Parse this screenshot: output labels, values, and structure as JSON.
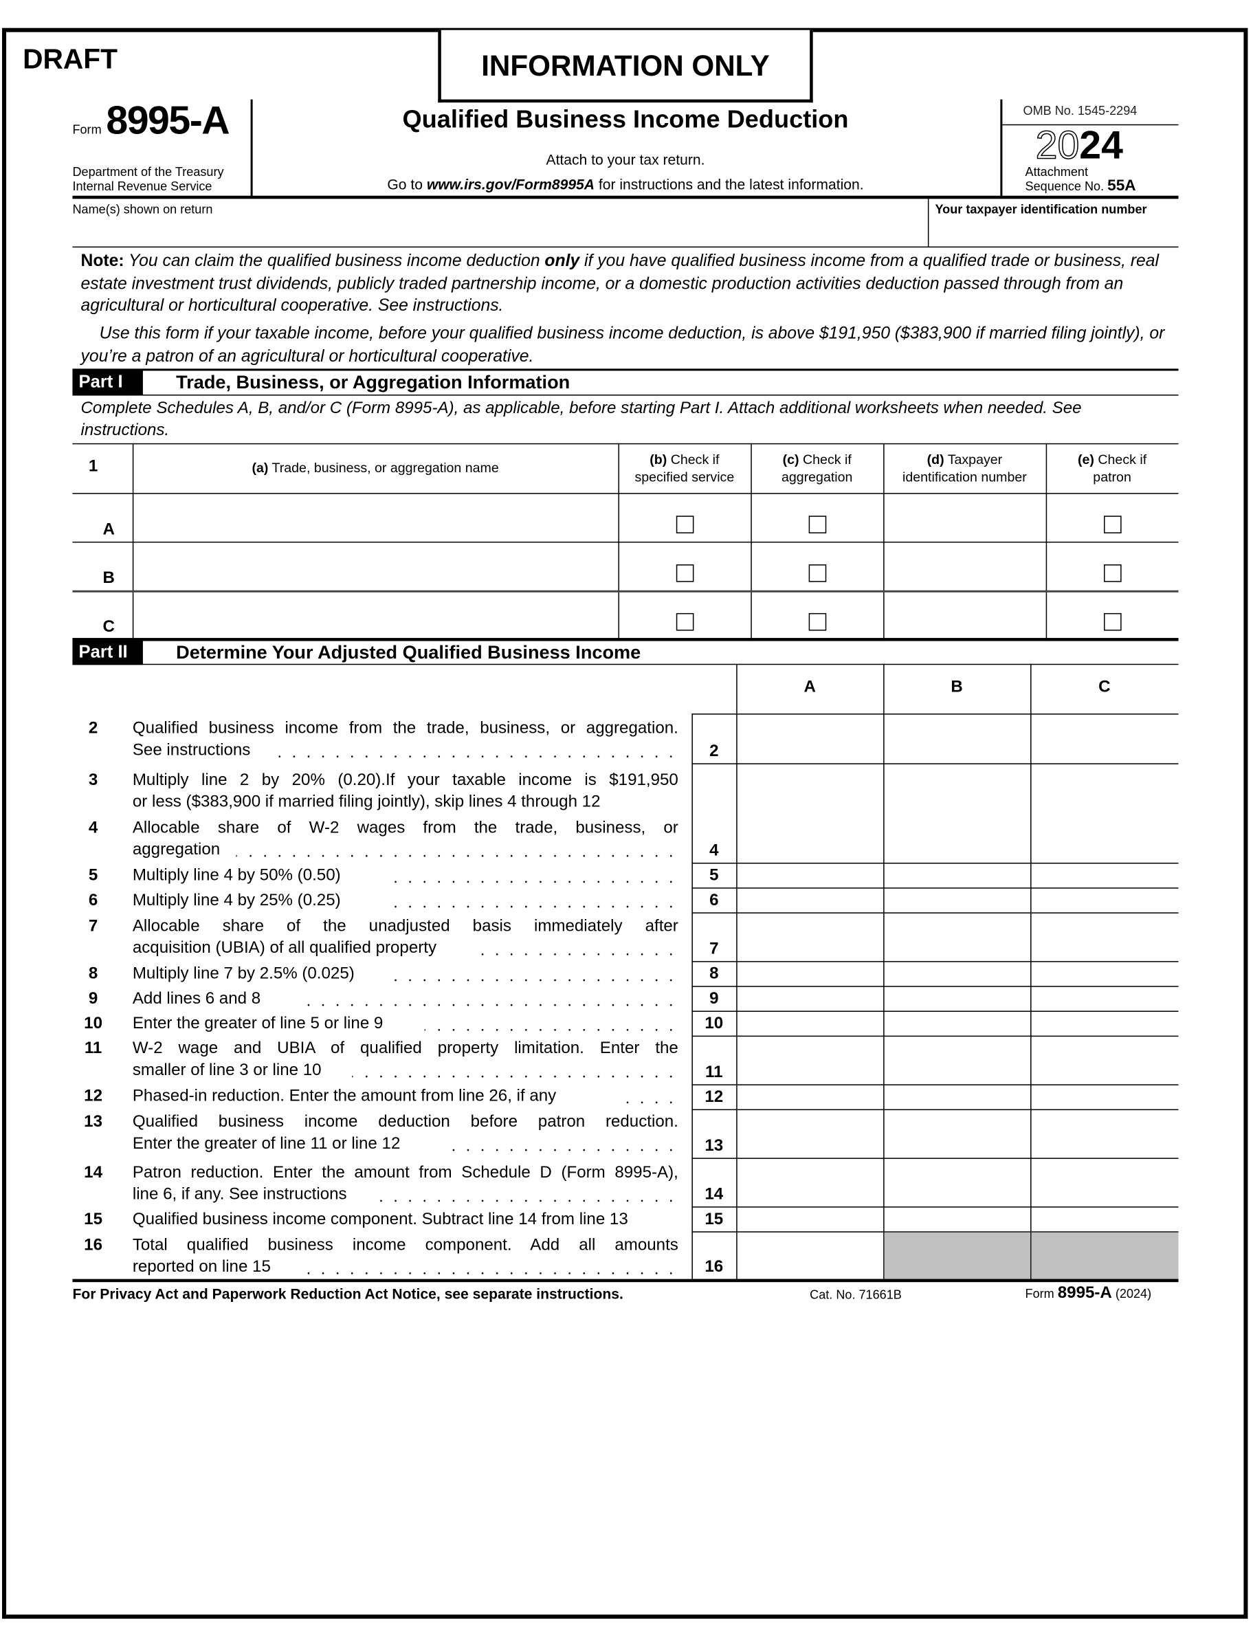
{
  "watermark": {
    "draft": "DRAFT",
    "information_only": "INFORMATION ONLY"
  },
  "header": {
    "form_word": "Form",
    "form_number": "8995-A",
    "dept_line1": "Department of the Treasury",
    "dept_line2": "Internal Revenue Service",
    "title": "Qualified Business Income Deduction",
    "attach": "Attach to your tax return.",
    "goto_prefix": "Go to ",
    "goto_url": "www.irs.gov/Form8995A",
    "goto_suffix": " for instructions and the latest information.",
    "omb": "OMB No. 1545-2294",
    "year_outline": "20",
    "year_bold": "24",
    "attachment": "Attachment",
    "sequence_label": "Sequence No.",
    "sequence_no": "55A"
  },
  "identity": {
    "name_label": "Name(s) shown on return",
    "name_value": "",
    "tin_label": "Your taxpayer identification number",
    "tin_value": ""
  },
  "note": {
    "label": "Note:",
    "text1": " You can claim the qualified business income deduction ",
    "only": "only",
    "text2": " if you have qualified business income from a qualified trade or business, real estate investment trust dividends, publicly traded partnership income, or a domestic production activities deduction passed through from an agricultural or horticultural cooperative. See instructions.",
    "use_text": "Use this form if your taxable income, before your qualified business income deduction, is above $191,950 ($383,900 if married filing jointly), or you’re a patron of an agricultural or horticultural cooperative."
  },
  "part1": {
    "label": "Part I",
    "title": "Trade, Business, or Aggregation Information",
    "instructions": "Complete Schedules A, B, and/or C (Form 8995-A), as applicable, before starting Part I. Attach additional worksheets when needed. See instructions.",
    "line_number": "1",
    "columns": [
      {
        "letter": "(a)",
        "text": " Trade, business, or aggregation name"
      },
      {
        "letter": "(b)",
        "text": " Check if",
        "text2": "specified service"
      },
      {
        "letter": "(c)",
        "text": " Check if",
        "text2": "aggregation"
      },
      {
        "letter": "(d)",
        "text": " Taxpayer",
        "text2": "identification number"
      },
      {
        "letter": "(e)",
        "text": " Check if",
        "text2": "patron"
      }
    ],
    "rows": [
      {
        "label": "A",
        "name": "",
        "specified_service": false,
        "aggregation": false,
        "tin": "",
        "patron": false
      },
      {
        "label": "B",
        "name": "",
        "specified_service": false,
        "aggregation": false,
        "tin": "",
        "patron": false
      },
      {
        "label": "C",
        "name": "",
        "specified_service": false,
        "aggregation": false,
        "tin": "",
        "patron": false
      }
    ]
  },
  "part2": {
    "label": "Part II",
    "title": "Determine Your Adjusted Qualified Business Income",
    "columns": [
      "A",
      "B",
      "C"
    ],
    "lines": [
      {
        "num": "2",
        "text": [
          "Qualified business income from the trade, business, or aggregation.",
          "See instructions"
        ],
        "box": "2",
        "values": [
          "",
          "",
          ""
        ]
      },
      {
        "num": "3",
        "text": [
          "Multiply line 2 by 20% (0.20).If your taxable income is $191,950",
          "or less ($383,900 if married filing jointly), skip lines 4 through 12"
        ],
        "box": "",
        "values": [
          "",
          "",
          ""
        ]
      },
      {
        "num": "4",
        "text": [
          "Allocable share of W-2 wages from the trade, business, or",
          "aggregation"
        ],
        "box": "4",
        "values": [
          "",
          "",
          ""
        ]
      },
      {
        "num": "5",
        "text": [
          "Multiply line 4 by 50% (0.50)"
        ],
        "box": "5",
        "values": [
          "",
          "",
          ""
        ]
      },
      {
        "num": "6",
        "text": [
          "Multiply line 4 by 25% (0.25)"
        ],
        "box": "6",
        "values": [
          "",
          "",
          ""
        ]
      },
      {
        "num": "7",
        "text": [
          "Allocable share of the unadjusted basis immediately after",
          "acquisition (UBIA) of all qualified property"
        ],
        "box": "7",
        "values": [
          "",
          "",
          ""
        ]
      },
      {
        "num": "8",
        "text": [
          "Multiply line 7 by 2.5% (0.025)"
        ],
        "box": "8",
        "values": [
          "",
          "",
          ""
        ]
      },
      {
        "num": "9",
        "text": [
          "Add lines 6 and 8"
        ],
        "box": "9",
        "values": [
          "",
          "",
          ""
        ]
      },
      {
        "num": "10",
        "text": [
          "Enter the greater of line 5 or line 9"
        ],
        "box": "10",
        "values": [
          "",
          "",
          ""
        ]
      },
      {
        "num": "11",
        "text": [
          "W-2 wage and UBIA of qualified property limitation. Enter the",
          "smaller of line 3 or line 10"
        ],
        "box": "11",
        "values": [
          "",
          "",
          ""
        ]
      },
      {
        "num": "12",
        "text": [
          "Phased-in reduction. Enter the amount from line 26, if any"
        ],
        "box": "12",
        "values": [
          "",
          "",
          ""
        ]
      },
      {
        "num": "13",
        "text": [
          "Qualified business income deduction before patron reduction.",
          "Enter the greater of line 11 or line 12"
        ],
        "box": "13",
        "values": [
          "",
          "",
          ""
        ]
      },
      {
        "num": "14",
        "text": [
          "Patron reduction. Enter the amount from Schedule D (Form 8995-A),",
          "line 6, if any. See instructions"
        ],
        "box": "14",
        "values": [
          "",
          "",
          ""
        ]
      },
      {
        "num": "15",
        "text": [
          "Qualified business income component. Subtract line 14 from line 13"
        ],
        "box": "15",
        "values": [
          "",
          "",
          ""
        ]
      },
      {
        "num": "16",
        "text": [
          "Total qualified business income component. Add all amounts",
          "reported on line 15"
        ],
        "box": "16",
        "values": [
          "",
          "",
          ""
        ],
        "shaded_columns": [
          "B",
          "C"
        ]
      }
    ],
    "shade_color": "#c0c0c0"
  },
  "footer": {
    "privacy": "For Privacy Act and Paperwork Reduction Act Notice, see separate instructions.",
    "cat_no": "Cat. No. 71661B",
    "form_word": "Form",
    "form_number": "8995-A",
    "year": "(2024)"
  }
}
